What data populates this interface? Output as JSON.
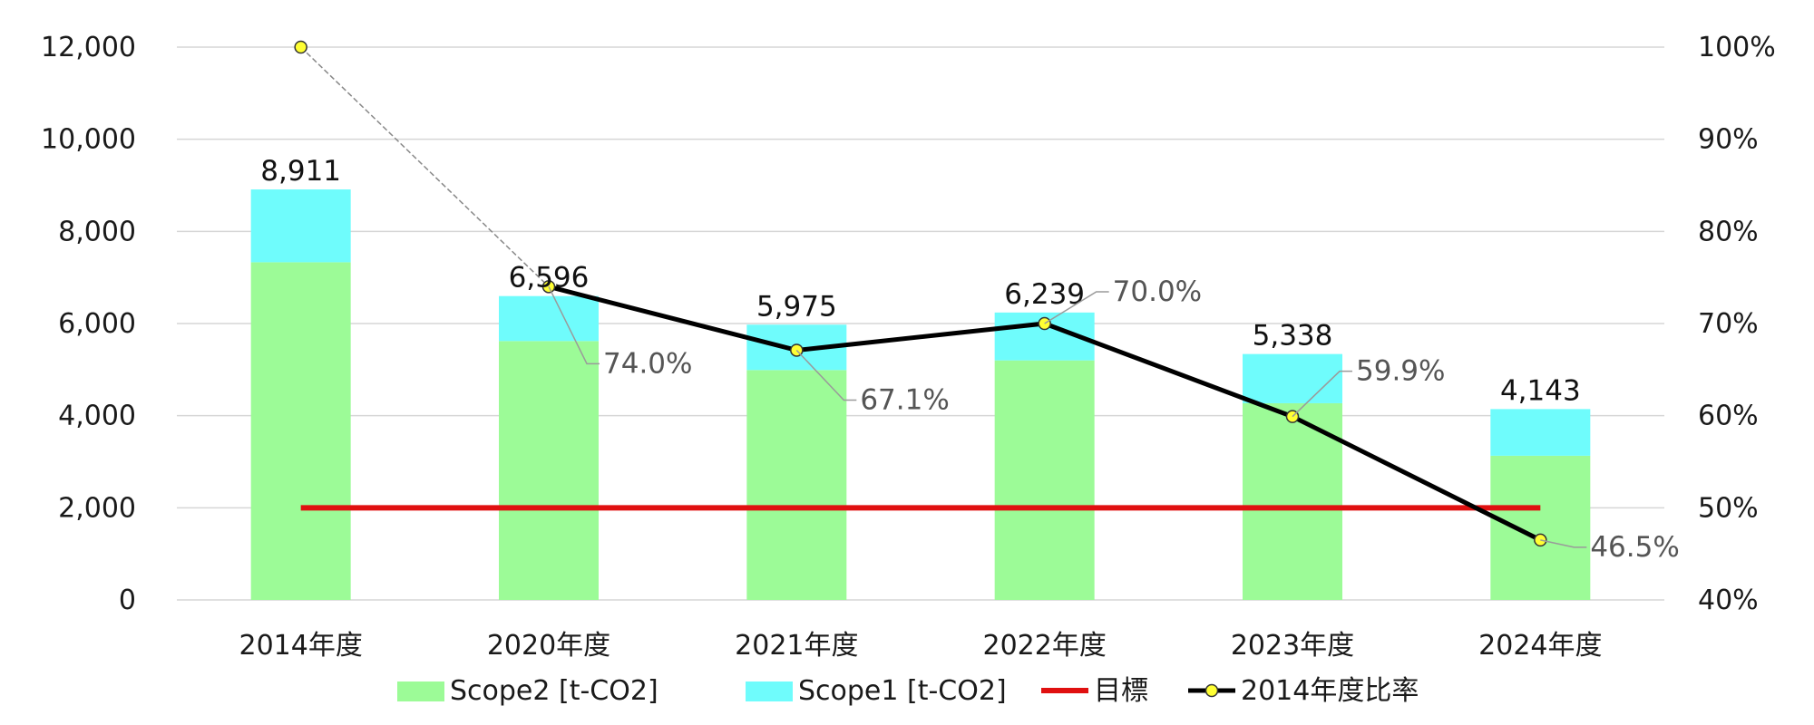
{
  "chart_data": {
    "type": "bar",
    "stacked": true,
    "categories": [
      "2014年度",
      "2020年度",
      "2021年度",
      "2022年度",
      "2023年度",
      "2024年度"
    ],
    "series": [
      {
        "name": "Scope2 [t-CO2]",
        "kind": "bar",
        "color": "#9cfb97",
        "values": [
          7330,
          5620,
          4990,
          5200,
          4270,
          3130
        ]
      },
      {
        "name": "Scope1 [t-CO2]",
        "kind": "bar",
        "color": "#6ffcfc",
        "values": [
          1581,
          976,
          985,
          1039,
          1068,
          1013
        ]
      },
      {
        "name": "目標",
        "kind": "line",
        "axis": "y",
        "color": "#e01010",
        "values": [
          2000,
          2000,
          2000,
          2000,
          2000,
          2000
        ]
      },
      {
        "name": "2014年度比率",
        "kind": "line",
        "axis": "y2",
        "color": "#000000",
        "marker_color": "#ffff33",
        "values": [
          100,
          74.0,
          67.1,
          70.0,
          59.9,
          46.5
        ]
      }
    ],
    "totals": [
      "8,911",
      "6,596",
      "5,975",
      "6,239",
      "5,338",
      "4,143"
    ],
    "ratio_labels": [
      "74.0%",
      "67.1%",
      "70.0%",
      "59.9%",
      "46.5%"
    ],
    "y_axis": {
      "min": 0,
      "max": 12000,
      "step": 2000,
      "ticks": [
        "0",
        "2,000",
        "4,000",
        "6,000",
        "8,000",
        "10,000",
        "12,000"
      ]
    },
    "y2_axis": {
      "min": 40,
      "max": 100,
      "step": 10,
      "ticks": [
        "40%",
        "50%",
        "60%",
        "70%",
        "80%",
        "90%",
        "100%"
      ]
    },
    "legend_position": "bottom",
    "gridlines": true
  }
}
